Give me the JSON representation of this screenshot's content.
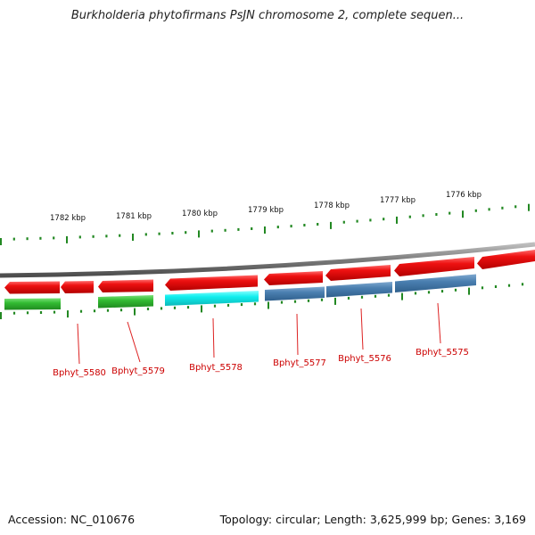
{
  "title": "Burkholderia phytofirmans PsJN chromosome 2, complete sequen...",
  "footer": {
    "accession": "Accession: NC_010676",
    "summary": "Topology: circular; Length: 3,625,999 bp; Genes: 3,169"
  },
  "colors": {
    "forward_feature": "#ee1111",
    "gene_green": "#33bb33",
    "gene_cyan": "#11eeee",
    "gene_blue": "#4a7fb0",
    "tick": "#228822",
    "backbone": "#808080",
    "label": "#cc0000"
  },
  "scale_labels": [
    "1782 kbp",
    "1781 kbp",
    "1780 kbp",
    "1779 kbp",
    "1778 kbp",
    "1777 kbp",
    "1776 kbp"
  ],
  "gene_labels": [
    "Bphyt_5580",
    "Bphyt_5579",
    "Bphyt_5578",
    "Bphyt_5577",
    "Bphyt_5576",
    "Bphyt_5575"
  ]
}
